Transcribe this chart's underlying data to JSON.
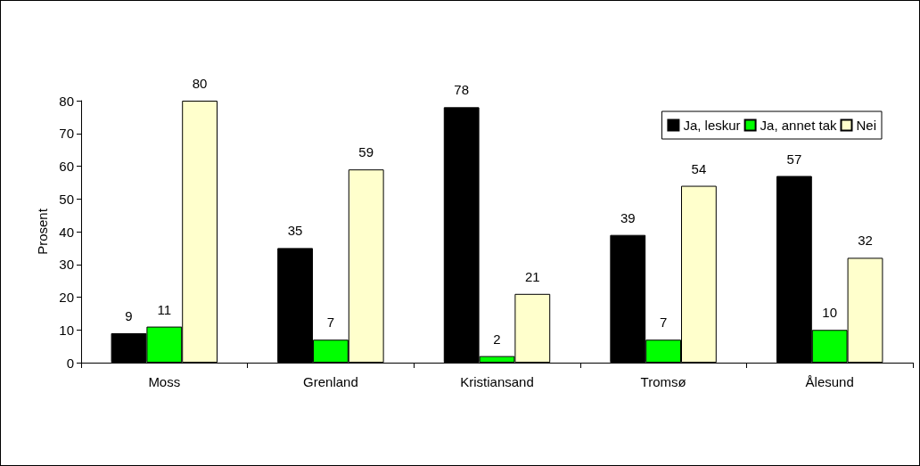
{
  "chart_data": {
    "type": "bar",
    "ylabel": "Prosent",
    "categories": [
      "Moss",
      "Grenland",
      "Kristiansand",
      "Tromsø",
      "Ålesund"
    ],
    "series": [
      {
        "name": "Ja, leskur",
        "color": "#000000",
        "values": [
          9,
          35,
          78,
          39,
          57
        ]
      },
      {
        "name": "Ja, annet tak",
        "color": "#00ff00",
        "values": [
          11,
          7,
          2,
          7,
          10
        ]
      },
      {
        "name": "Nei",
        "color": "#ffffcc",
        "values": [
          80,
          59,
          21,
          54,
          32
        ]
      }
    ],
    "ylim": [
      0,
      80
    ],
    "yticks": [
      0,
      10,
      20,
      30,
      40,
      50,
      60,
      70,
      80
    ],
    "data_labels": true,
    "grid": false,
    "legend": "top right"
  }
}
